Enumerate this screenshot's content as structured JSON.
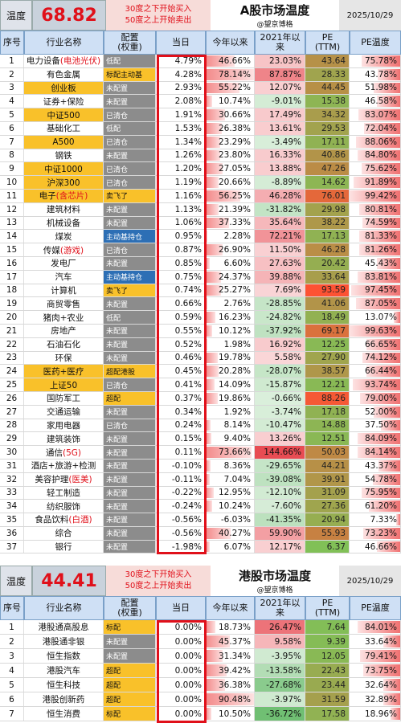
{
  "a_share": {
    "temp_label": "温度",
    "temp_value": "68.82",
    "note_line1": "30度之下开始买入",
    "note_line2": "50度之上开始卖出",
    "title": "A股市场温度",
    "subtitle": "@望京博格",
    "date": "2025/10/29",
    "columns": [
      "序号",
      "行业名称",
      "配置\n(权重)",
      "当日",
      "今年以来",
      "2021年以\n来",
      "PE\n(TTM)",
      "PE温度"
    ],
    "rows": [
      [
        "1",
        "电力设备(电池光伏)",
        "低配",
        "4.79%",
        "46.66%",
        "23.03%",
        "43.64",
        "75.78%"
      ],
      [
        "2",
        "有色金属",
        "标配主动基",
        "4.28%",
        "78.14%",
        "87.87%",
        "28.33",
        "43.78%"
      ],
      [
        "3",
        "创业板",
        "未配置",
        "2.93%",
        "55.22%",
        "12.07%",
        "44.45",
        "51.98%"
      ],
      [
        "4",
        "证券+保险",
        "未配置",
        "2.08%",
        "10.74%",
        "-9.01%",
        "15.38",
        "46.58%"
      ],
      [
        "5",
        "中证500",
        "已清仓",
        "1.91%",
        "30.66%",
        "17.49%",
        "34.32",
        "83.07%"
      ],
      [
        "6",
        "基础化工",
        "低配",
        "1.53%",
        "26.38%",
        "13.61%",
        "29.53",
        "72.04%"
      ],
      [
        "7",
        "A500",
        "已清仓",
        "1.34%",
        "23.29%",
        "-3.49%",
        "17.11",
        "88.06%"
      ],
      [
        "8",
        "钢铁",
        "未配置",
        "1.26%",
        "23.80%",
        "16.33%",
        "40.86",
        "84.80%"
      ],
      [
        "9",
        "中证1000",
        "已清仓",
        "1.20%",
        "27.05%",
        "13.88%",
        "47.26",
        "75.62%"
      ],
      [
        "10",
        "沪深300",
        "已清仓",
        "1.19%",
        "20.66%",
        "-8.89%",
        "14.62",
        "91.89%"
      ],
      [
        "11",
        "电子(含芯片)",
        "卖飞了",
        "1.16%",
        "56.25%",
        "46.28%",
        "76.01",
        "99.42%"
      ],
      [
        "12",
        "建筑材料",
        "未配置",
        "1.13%",
        "21.39%",
        "-31.82%",
        "29.98",
        "80.81%"
      ],
      [
        "13",
        "机械设备",
        "未配置",
        "1.06%",
        "37.33%",
        "35.64%",
        "38.22",
        "74.59%"
      ],
      [
        "14",
        "煤炭",
        "主动基持仓",
        "0.95%",
        "2.28%",
        "72.21%",
        "17.13",
        "81.33%"
      ],
      [
        "15",
        "传媒(游戏)",
        "已清仓",
        "0.87%",
        "26.90%",
        "11.50%",
        "46.28",
        "81.26%"
      ],
      [
        "16",
        "发电厂",
        "未配置",
        "0.85%",
        "6.60%",
        "27.63%",
        "20.42",
        "45.43%"
      ],
      [
        "17",
        "汽车",
        "主动基持仓",
        "0.75%",
        "24.37%",
        "39.88%",
        "33.64",
        "83.81%"
      ],
      [
        "18",
        "计算机",
        "卖飞了",
        "0.74%",
        "25.27%",
        "7.69%",
        "93.59",
        "97.45%"
      ],
      [
        "19",
        "商贸零售",
        "未配置",
        "0.66%",
        "2.76%",
        "-28.85%",
        "41.06",
        "87.05%"
      ],
      [
        "20",
        "猪肉+农业",
        "低配",
        "0.59%",
        "16.23%",
        "-24.82%",
        "18.49",
        "13.07%"
      ],
      [
        "21",
        "房地产",
        "未配置",
        "0.55%",
        "10.12%",
        "-37.92%",
        "69.17",
        "99.63%"
      ],
      [
        "22",
        "石油石化",
        "未配置",
        "0.52%",
        "1.98%",
        "16.92%",
        "12.25",
        "66.65%"
      ],
      [
        "23",
        "环保",
        "未配置",
        "0.46%",
        "19.78%",
        "5.58%",
        "27.90",
        "74.12%"
      ],
      [
        "24",
        "医药+医疗",
        "超配港股",
        "0.45%",
        "20.28%",
        "-28.07%",
        "38.57",
        "66.44%"
      ],
      [
        "25",
        "上证50",
        "已清仓",
        "0.41%",
        "14.09%",
        "-15.87%",
        "12.21",
        "93.74%"
      ],
      [
        "26",
        "国防军工",
        "超配",
        "0.37%",
        "19.86%",
        "-0.66%",
        "88.26",
        "79.00%"
      ],
      [
        "27",
        "交通运输",
        "未配置",
        "0.34%",
        "1.92%",
        "-3.74%",
        "17.18",
        "52.00%"
      ],
      [
        "28",
        "家用电器",
        "已清仓",
        "0.24%",
        "8.14%",
        "-10.47%",
        "14.88",
        "37.50%"
      ],
      [
        "29",
        "建筑装饰",
        "未配置",
        "0.15%",
        "9.40%",
        "13.26%",
        "12.51",
        "84.09%"
      ],
      [
        "30",
        "通信(5G)",
        "未配置",
        "0.11%",
        "73.66%",
        "144.66%",
        "50.03",
        "84.14%"
      ],
      [
        "31",
        "酒店+旅游+检测",
        "未配置",
        "-0.10%",
        "8.36%",
        "-29.65%",
        "44.21",
        "43.37%"
      ],
      [
        "32",
        "美容护理(医美)",
        "未配置",
        "-0.11%",
        "7.04%",
        "-39.08%",
        "39.91",
        "54.78%"
      ],
      [
        "33",
        "轻工制造",
        "未配置",
        "-0.22%",
        "12.95%",
        "-12.10%",
        "31.09",
        "75.95%"
      ],
      [
        "34",
        "纺织服饰",
        "未配置",
        "-0.24%",
        "10.24%",
        "-7.60%",
        "27.36",
        "61.20%"
      ],
      [
        "35",
        "食品饮料(白酒)",
        "未配置",
        "-0.56%",
        "-6.03%",
        "-41.35%",
        "20.94",
        "7.33%"
      ],
      [
        "36",
        "综合",
        "未配置",
        "-0.56%",
        "40.27%",
        "59.90%",
        "55.93",
        "73.23%"
      ],
      [
        "37",
        "银行",
        "未配置",
        "-1.98%",
        "6.07%",
        "12.17%",
        "6.37",
        "46.66%"
      ]
    ]
  },
  "hk": {
    "temp_label": "温度",
    "temp_value": "44.41",
    "note_line1": "30度之下开始买入",
    "note_line2": "50度之上开始卖出",
    "title": "港股市场温度",
    "subtitle": "@望京博格",
    "date": "2025/10/29",
    "columns": [
      "序号",
      "行业名称",
      "配置\n(权重)",
      "当日",
      "今年以来",
      "2021年以\n来",
      "PE\n(TTM)",
      "PE温度"
    ],
    "rows": [
      [
        "1",
        "港股通高股息",
        "标配",
        "0.00%",
        "18.73%",
        "26.47%",
        "7.64",
        "84.01%"
      ],
      [
        "2",
        "港股通非银",
        "未配置",
        "0.00%",
        "45.37%",
        "9.58%",
        "9.39",
        "33.64%"
      ],
      [
        "3",
        "恒生指数",
        "未配置",
        "0.00%",
        "31.34%",
        "-3.95%",
        "12.05",
        "79.41%"
      ],
      [
        "4",
        "港股汽车",
        "超配",
        "0.00%",
        "39.42%",
        "-13.58%",
        "22.43",
        "73.75%"
      ],
      [
        "5",
        "恒生科技",
        "超配",
        "0.00%",
        "36.38%",
        "-27.68%",
        "23.44",
        "32.64%"
      ],
      [
        "6",
        "港股创新药",
        "超配",
        "0.00%",
        "90.48%",
        "-3.97%",
        "31.59",
        "32.89%"
      ],
      [
        "7",
        "恒生消费",
        "标配",
        "0.00%",
        "10.50%",
        "-36.72%",
        "17.58",
        "18.96%"
      ]
    ]
  },
  "colors": {
    "accent_red": "#e0101a",
    "highlight": "#f9c12a",
    "header_blue": "#cfe0f5",
    "weight_gray": "#8c8c8c",
    "weight_blue": "#2d6fb5"
  }
}
